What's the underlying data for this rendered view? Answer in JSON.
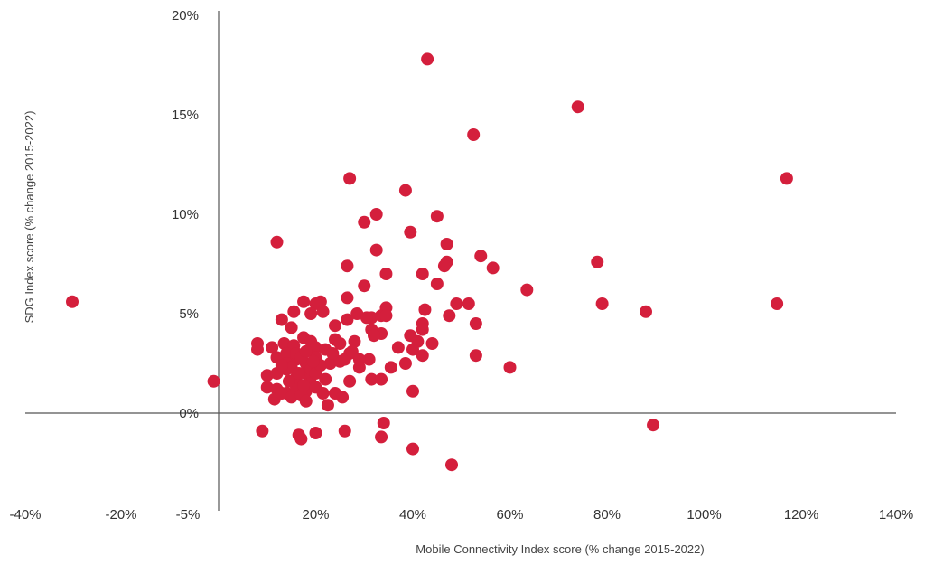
{
  "chart_data": {
    "type": "scatter",
    "xlabel": "Mobile Connectivity Index score (% change 2015-2022)",
    "ylabel": "SDG Index score (% change 2015-2022)",
    "xlim": [
      -40,
      140
    ],
    "ylim": [
      -5,
      20
    ],
    "x_ticks": [
      {
        "value": -40,
        "label": "-40%"
      },
      {
        "value": -20,
        "label": "-20%"
      },
      {
        "value": 20,
        "label": "20%"
      },
      {
        "value": 40,
        "label": "40%"
      },
      {
        "value": 60,
        "label": "60%"
      },
      {
        "value": 80,
        "label": "80%"
      },
      {
        "value": 100,
        "label": "100%"
      },
      {
        "value": 120,
        "label": "120%"
      },
      {
        "value": 140,
        "label": "140%"
      }
    ],
    "x_extra_label": {
      "value": 0,
      "label": "-5%"
    },
    "y_ticks": [
      {
        "value": 20,
        "label": "20%"
      },
      {
        "value": 15,
        "label": "15%"
      },
      {
        "value": 10,
        "label": "10%"
      },
      {
        "value": 5,
        "label": "5%"
      },
      {
        "value": 0,
        "label": "0%"
      }
    ],
    "grid": false,
    "marker_color": "#d41f3c",
    "points": [
      [
        -30,
        5.6
      ],
      [
        -1,
        1.6
      ],
      [
        43,
        17.8
      ],
      [
        74,
        15.4
      ],
      [
        52.5,
        14.0
      ],
      [
        117,
        11.8
      ],
      [
        27,
        11.8
      ],
      [
        38.5,
        11.2
      ],
      [
        32.5,
        10.0
      ],
      [
        30,
        9.6
      ],
      [
        45,
        9.9
      ],
      [
        39.5,
        9.1
      ],
      [
        12,
        8.6
      ],
      [
        47,
        8.5
      ],
      [
        32.5,
        8.2
      ],
      [
        54,
        7.9
      ],
      [
        26.5,
        7.4
      ],
      [
        47,
        7.6
      ],
      [
        46.5,
        7.4
      ],
      [
        56.5,
        7.3
      ],
      [
        78,
        7.6
      ],
      [
        42,
        7.0
      ],
      [
        34.5,
        7.0
      ],
      [
        30,
        6.4
      ],
      [
        45,
        6.5
      ],
      [
        63.5,
        6.2
      ],
      [
        26.5,
        5.8
      ],
      [
        17.5,
        5.6
      ],
      [
        21,
        5.6
      ],
      [
        20,
        5.5
      ],
      [
        42.5,
        5.2
      ],
      [
        49,
        5.5
      ],
      [
        51.5,
        5.5
      ],
      [
        79,
        5.5
      ],
      [
        115,
        5.5
      ],
      [
        34.5,
        5.3
      ],
      [
        88,
        5.1
      ],
      [
        15.5,
        5.1
      ],
      [
        19,
        5.0
      ],
      [
        21.5,
        5.1
      ],
      [
        28.5,
        5.0
      ],
      [
        31.5,
        4.8
      ],
      [
        33.5,
        4.9
      ],
      [
        34.5,
        4.9
      ],
      [
        47.5,
        4.9
      ],
      [
        13,
        4.7
      ],
      [
        26.5,
        4.7
      ],
      [
        42,
        4.5
      ],
      [
        53,
        4.5
      ],
      [
        15,
        4.3
      ],
      [
        24,
        4.4
      ],
      [
        31.5,
        4.2
      ],
      [
        33.5,
        4.0
      ],
      [
        32,
        3.9
      ],
      [
        42,
        4.2
      ],
      [
        39.5,
        3.9
      ],
      [
        41,
        3.6
      ],
      [
        44,
        3.5
      ],
      [
        8,
        3.5
      ],
      [
        8,
        3.2
      ],
      [
        11,
        3.3
      ],
      [
        13.5,
        3.5
      ],
      [
        15.5,
        3.4
      ],
      [
        17.5,
        3.8
      ],
      [
        19,
        3.6
      ],
      [
        20,
        3.3
      ],
      [
        22,
        3.2
      ],
      [
        24,
        3.7
      ],
      [
        25,
        3.5
      ],
      [
        27,
        3.0
      ],
      [
        37,
        3.3
      ],
      [
        40,
        3.2
      ],
      [
        42,
        2.9
      ],
      [
        53,
        2.9
      ],
      [
        12,
        2.8
      ],
      [
        14,
        3.0
      ],
      [
        16,
        2.7
      ],
      [
        18,
        2.5
      ],
      [
        20,
        2.8
      ],
      [
        23,
        2.5
      ],
      [
        25,
        2.6
      ],
      [
        29,
        2.3
      ],
      [
        31,
        2.7
      ],
      [
        35.5,
        2.3
      ],
      [
        38.5,
        2.5
      ],
      [
        60,
        2.3
      ],
      [
        10,
        1.9
      ],
      [
        12,
        2.0
      ],
      [
        14,
        2.2
      ],
      [
        16,
        1.8
      ],
      [
        18,
        2.0
      ],
      [
        19,
        1.5
      ],
      [
        22,
        1.7
      ],
      [
        27,
        1.6
      ],
      [
        31.5,
        1.7
      ],
      [
        33.5,
        1.7
      ],
      [
        10,
        1.3
      ],
      [
        12,
        1.2
      ],
      [
        14,
        1.0
      ],
      [
        16,
        1.3
      ],
      [
        18,
        1.1
      ],
      [
        20,
        1.3
      ],
      [
        21.5,
        1.0
      ],
      [
        24,
        1.0
      ],
      [
        25.5,
        0.8
      ],
      [
        40,
        1.1
      ],
      [
        11.5,
        0.7
      ],
      [
        13,
        1.0
      ],
      [
        15,
        0.8
      ],
      [
        17,
        0.9
      ],
      [
        18,
        0.6
      ],
      [
        22.5,
        0.4
      ],
      [
        14,
        2.5
      ],
      [
        15,
        2.3
      ],
      [
        16,
        3.0
      ],
      [
        17,
        2.8
      ],
      [
        18,
        3.1
      ],
      [
        19,
        2.2
      ],
      [
        20,
        2.0
      ],
      [
        21,
        2.4
      ],
      [
        13,
        2.4
      ],
      [
        14.5,
        1.6
      ],
      [
        16.5,
        2.0
      ],
      [
        17.5,
        1.4
      ],
      [
        19.5,
        2.6
      ],
      [
        23.5,
        3.0
      ],
      [
        26,
        2.7
      ],
      [
        28,
        3.6
      ],
      [
        9,
        -0.9
      ],
      [
        17,
        -1.3
      ],
      [
        20,
        -1.0
      ],
      [
        26,
        -0.9
      ],
      [
        33.5,
        -1.2
      ],
      [
        34,
        -0.5
      ],
      [
        40,
        -1.8
      ],
      [
        48,
        -2.6
      ],
      [
        89.5,
        -0.6
      ],
      [
        16.5,
        -1.1
      ],
      [
        27.5,
        3.1
      ],
      [
        29,
        2.7
      ],
      [
        30.5,
        4.8
      ]
    ]
  }
}
